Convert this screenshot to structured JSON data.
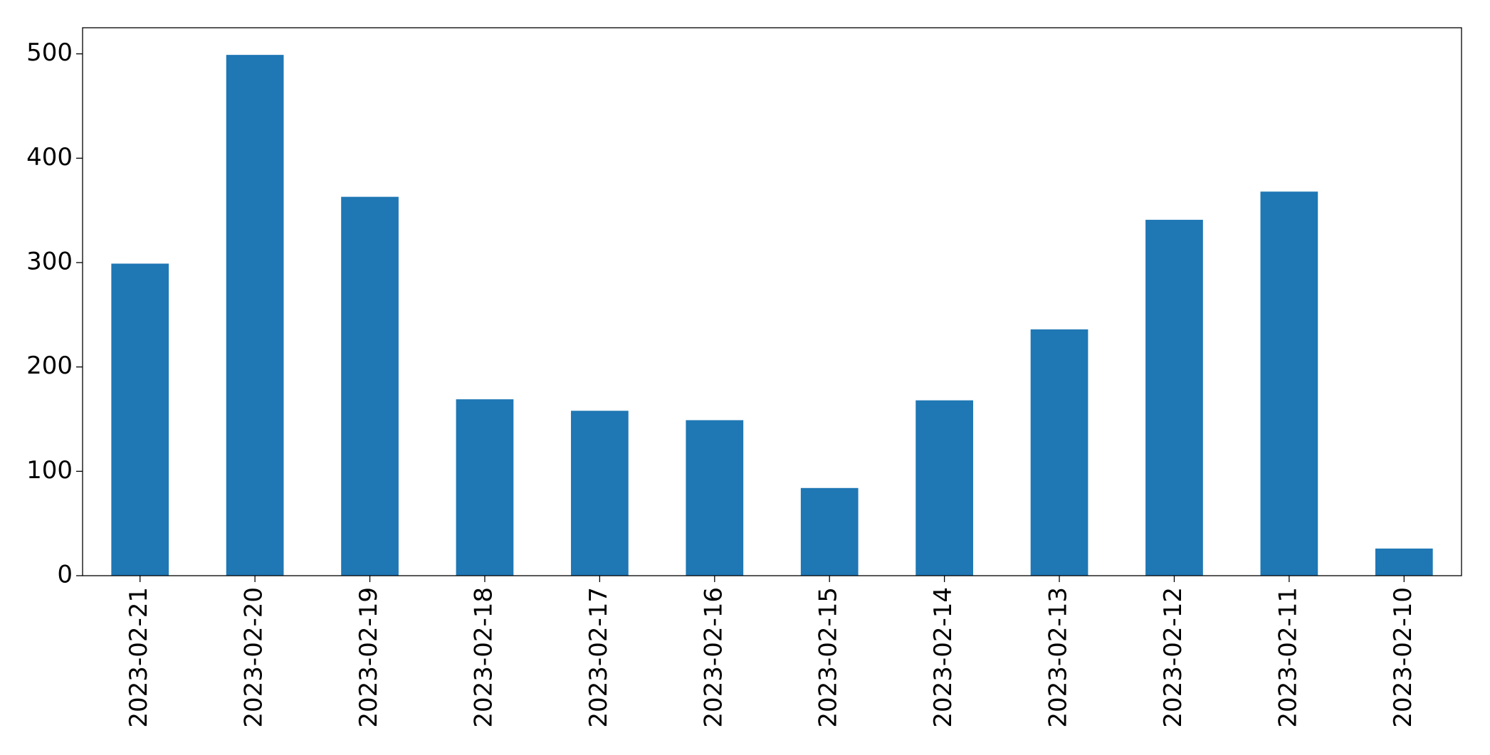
{
  "chart_data": {
    "type": "bar",
    "categories": [
      "2023-02-21",
      "2023-02-20",
      "2023-02-19",
      "2023-02-18",
      "2023-02-17",
      "2023-02-16",
      "2023-02-15",
      "2023-02-14",
      "2023-02-13",
      "2023-02-12",
      "2023-02-11",
      "2023-02-10"
    ],
    "values": [
      299,
      499,
      363,
      169,
      158,
      149,
      84,
      168,
      236,
      341,
      368,
      26
    ],
    "color": "#1f77b4",
    "ylim": [
      0,
      525
    ],
    "yticks": [
      0,
      100,
      200,
      300,
      400,
      500
    ],
    "grid": false
  }
}
